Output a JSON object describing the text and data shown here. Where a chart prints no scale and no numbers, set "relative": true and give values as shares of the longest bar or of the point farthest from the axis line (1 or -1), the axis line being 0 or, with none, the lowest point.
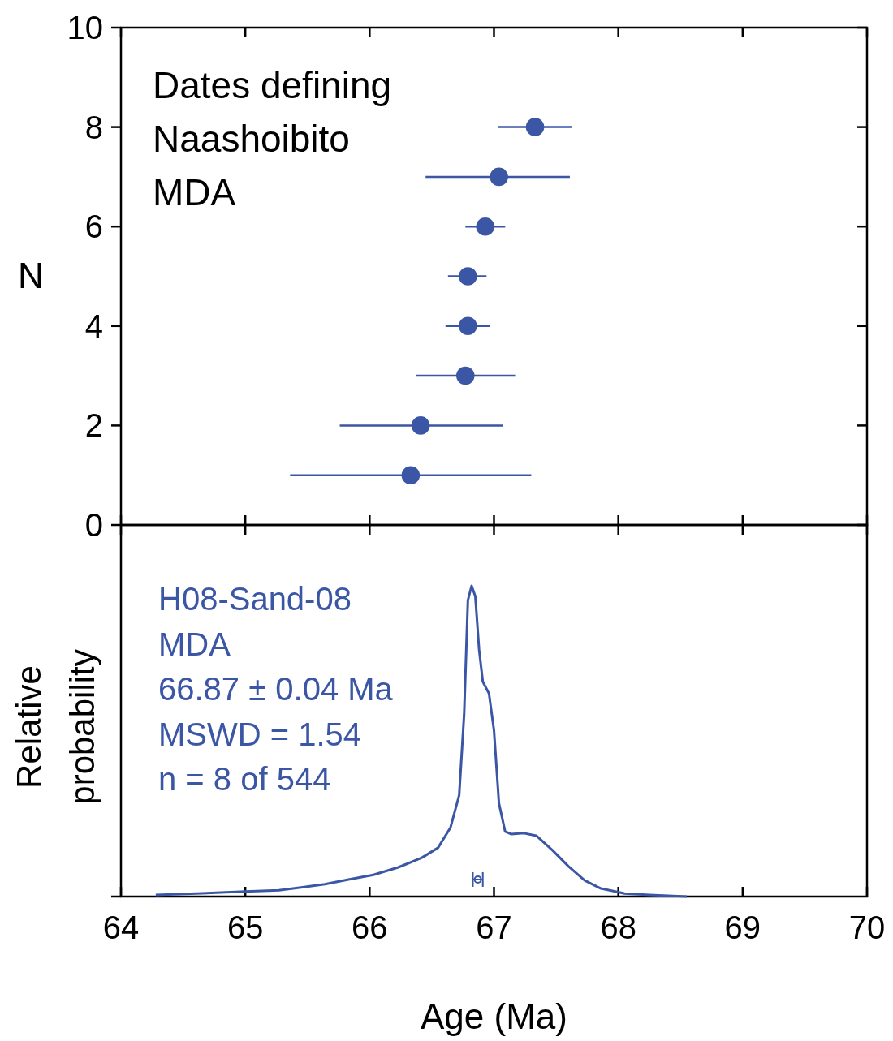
{
  "chart_data": [
    {
      "type": "scatter",
      "ylabel": "N",
      "annotations": [
        "Dates defining",
        "Naashoibito",
        "MDA"
      ],
      "xlim": [
        64,
        70
      ],
      "xticks": [
        64,
        65,
        66,
        67,
        68,
        69,
        70
      ],
      "ylim": [
        0,
        10
      ],
      "yticks": [
        0,
        2,
        4,
        6,
        8,
        10
      ],
      "tick_labels": "y",
      "marker": "circle",
      "series": [
        {
          "color": "#3a56a5",
          "x": [
            66.33,
            66.41,
            66.77,
            66.79,
            66.79,
            66.93,
            67.04,
            67.33
          ],
          "values": [
            1,
            2,
            3,
            4,
            5,
            6,
            7,
            8
          ],
          "xerrors": [
            [
              65.36,
              67.3
            ],
            [
              65.76,
              67.07
            ],
            [
              66.37,
              67.17
            ],
            [
              66.61,
              66.97
            ],
            [
              66.63,
              66.94
            ],
            [
              66.77,
              67.09
            ],
            [
              66.45,
              67.61
            ],
            [
              67.03,
              67.63
            ]
          ]
        }
      ]
    },
    {
      "type": "line",
      "relative": true,
      "xlabel": "Age (Ma)",
      "ylabel": "Relative probability",
      "annotations": [
        "H08-Sand-08",
        "MDA",
        "66.87 ± 0.04 Ma",
        "MSWD = 1.54",
        "n = 8 of 544"
      ],
      "xlim": [
        64,
        70
      ],
      "xticks": [
        64,
        65,
        66,
        67,
        68,
        69,
        70
      ],
      "tick_labels": "x",
      "series": [
        {
          "type": "line",
          "color": "#3a56a5",
          "x": [
            64.28,
            65.0,
            65.27,
            65.46,
            65.64,
            65.83,
            66.03,
            66.23,
            66.42,
            66.55,
            66.65,
            66.72,
            66.76,
            66.79,
            66.82,
            66.85,
            66.88,
            66.91,
            66.96,
            67.0,
            67.04,
            67.09,
            67.14,
            67.24,
            67.34,
            67.47,
            67.6,
            67.73,
            67.86,
            68.05,
            68.25,
            68.55
          ],
          "values": [
            0.005,
            0.016,
            0.02,
            0.03,
            0.04,
            0.055,
            0.07,
            0.094,
            0.125,
            0.157,
            0.222,
            0.326,
            0.587,
            0.953,
            1.0,
            0.966,
            0.796,
            0.692,
            0.653,
            0.535,
            0.3,
            0.209,
            0.201,
            0.204,
            0.196,
            0.149,
            0.097,
            0.052,
            0.026,
            0.01,
            0.005,
            0
          ]
        },
        {
          "type": "scatter",
          "color": "#3a56a5",
          "marker": "circle",
          "x": [
            66.87
          ],
          "values": [
            0.055
          ],
          "xerrors": [
            0.04
          ]
        }
      ]
    }
  ]
}
